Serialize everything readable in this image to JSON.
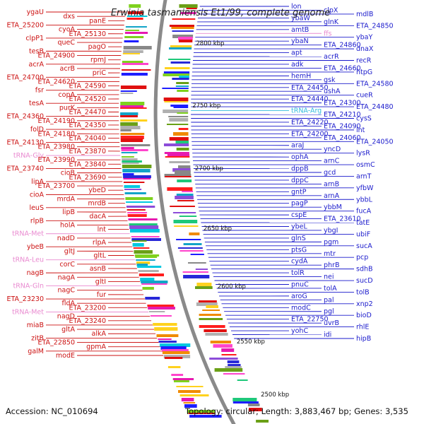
{
  "title": "Erwinia tasmaniensis Et1/99, complete genome",
  "footer": {
    "accession": "Accession: NC_010694",
    "summary": "Topology: circular; Length: 3,883,467 bp; Genes: 3,535"
  },
  "colors": {
    "left_label": "#cc1111",
    "right_label": "#1a1acc",
    "rna_label": "#e98ad0",
    "trna_arg": "#33bbdd",
    "ring": "#8a8a8a"
  },
  "scale": [
    "2800 kbp",
    "2750 kbp",
    "2700 kbp",
    "2650 kbp",
    "2600 kbp",
    "2550 kbp",
    "2500 kbp"
  ],
  "left_genes": [
    "ygaU",
    "dxs",
    "panE",
    "ETA_25200",
    "cyoA",
    "ETA_25130",
    "clpP1",
    "queC",
    "pagO",
    "tesB",
    "ETA_24900",
    "rpmJ",
    "acrA",
    "acrB",
    "priC",
    "ETA_24700",
    "ETA_24620",
    "ETA_24590",
    "fsr",
    "copA",
    "ETA_24520",
    "tesA",
    "purK",
    "ETA_24470",
    "ETA_24360",
    "ETA_24190",
    "ETA_24350",
    "folD",
    "ETA_24180",
    "ETA_24040",
    "ETA_24130",
    "ETA_23980",
    "ETA_23870",
    "tRNA-Gly",
    "ETA_23990",
    "ETA_23840",
    "ETA_23740",
    "cioB",
    "ETA_23690",
    "lipA",
    "ETA_23700",
    "ybeD",
    "cioA",
    "mrdA",
    "mrdB",
    "leuS",
    "lipB",
    "dacA",
    "rlpB",
    "holA",
    "lnt",
    "tRNA-Met",
    "nadD",
    "rlpA",
    "ybeB",
    "gltJ",
    "gltL",
    "tRNA-Leu",
    "corC",
    "asnB",
    "nagB",
    "nagA",
    "gltI",
    "tRNA-Gln",
    "nagC",
    "fur",
    "ETA_23230",
    "fldA",
    "ETA_23200",
    "tRNA-Met",
    "nagD",
    "ETA_23240",
    "miaB",
    "gltA",
    "alkA",
    "zitB",
    "ETA_22850",
    "gpmA",
    "galM",
    "modE"
  ],
  "right_genes": [
    "lon",
    "clpX",
    "mdlB",
    "ybaW",
    "glnK",
    "ETA_24850",
    "amtB",
    "ffs",
    "ybaY",
    "ybaN",
    "ETA_24860",
    "dnaX",
    "apt",
    "acrR",
    "recR",
    "adk",
    "ETA_24660",
    "htpG",
    "hemH",
    "gsk",
    "ETA_24580",
    "ETA_24450",
    "ushA",
    "cueR",
    "ETA_24440",
    "ETA_24300",
    "ETA_24480",
    "tRNA-Arg",
    "ETA_24210",
    "cysS",
    "ETA_24220",
    "ETA_24090",
    "lnt",
    "ETA_24200",
    "ETA_24060",
    "ETA_24050",
    "araJ",
    "yncD",
    "lysR",
    "ophA",
    "arnC",
    "osmC",
    "dppB",
    "gcd",
    "arnT",
    "dppC",
    "arnB",
    "yfbW",
    "gntP",
    "arnA",
    "ybbL",
    "pagP",
    "ybbM",
    "fucA",
    "cspE",
    "ETA_23610",
    "tatE",
    "ybeL",
    "ybgI",
    "ubiF",
    "glnS",
    "pgm",
    "sucA",
    "ptsG",
    "mtr",
    "pcp",
    "cydA",
    "phrB",
    "sdhB",
    "tolR",
    "nei",
    "sucD",
    "pnuC",
    "tolA",
    "tolB",
    "aroG",
    "pal",
    "xnp2",
    "modC",
    "pgl",
    "bioD",
    "ETA_22750",
    "uvrB",
    "rhlE",
    "yohC",
    "idi",
    "hipB"
  ]
}
